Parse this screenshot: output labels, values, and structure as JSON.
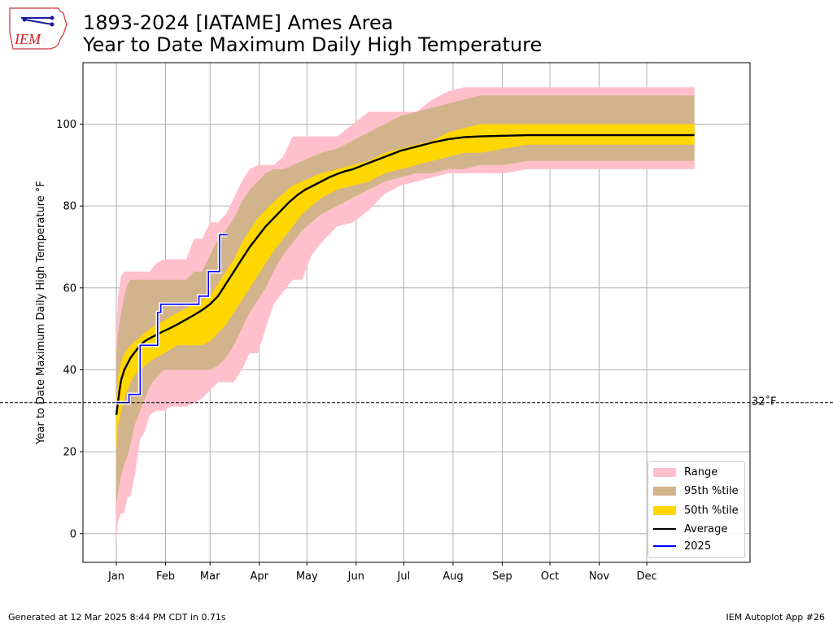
{
  "header": {
    "title_line1": "1893-2024 [IATAME] Ames Area",
    "title_line2": "Year to Date Maximum Daily High Temperature",
    "logo_text": "IEM"
  },
  "footer": {
    "left": "Generated at 12 Mar 2025 8:44 PM CDT in 0.71s",
    "right": "IEM Autoplot App #26"
  },
  "colors": {
    "range": "#ffc0cb",
    "p95": "#d2b48c",
    "p50": "#ffd700",
    "average": "#000000",
    "current": "#0000ff",
    "grid": "#b0b0b0"
  },
  "chart_data": {
    "type": "area",
    "title": "1893-2024 [IATAME] Ames Area Year to Date Maximum Daily High Temperature",
    "xlabel": "",
    "ylabel": "Year to Date Maximum Daily High Temperature °F",
    "ylim": [
      -7,
      115
    ],
    "xlim": [
      -20,
      400
    ],
    "grid": true,
    "legend_position": "bottom-right",
    "x_ticks": [
      {
        "day": 1,
        "label": "Jan"
      },
      {
        "day": 32,
        "label": "Feb"
      },
      {
        "day": 60,
        "label": "Mar"
      },
      {
        "day": 91,
        "label": "Apr"
      },
      {
        "day": 121,
        "label": "May"
      },
      {
        "day": 152,
        "label": "Jun"
      },
      {
        "day": 182,
        "label": "Jul"
      },
      {
        "day": 213,
        "label": "Aug"
      },
      {
        "day": 244,
        "label": "Sep"
      },
      {
        "day": 274,
        "label": "Oct"
      },
      {
        "day": 305,
        "label": "Nov"
      },
      {
        "day": 335,
        "label": "Dec"
      }
    ],
    "y_ticks": [
      0,
      20,
      40,
      60,
      80,
      100
    ],
    "reference_line": {
      "y": 32,
      "label": "32˚F"
    },
    "legend": [
      {
        "label": "Range",
        "kind": "patch",
        "color": "#ffc0cb"
      },
      {
        "label": "95th %tile",
        "kind": "patch",
        "color": "#d2b48c"
      },
      {
        "label": "50th %tile",
        "kind": "patch",
        "color": "#ffd700"
      },
      {
        "label": "Average",
        "kind": "line",
        "color": "#000000"
      },
      {
        "label": "2025",
        "kind": "line",
        "color": "#0000ff"
      }
    ],
    "series": [
      {
        "name": "Range",
        "days": [
          1,
          2,
          4,
          6,
          8,
          10,
          13,
          16,
          19,
          22,
          26,
          31,
          35,
          40,
          45,
          50,
          55,
          60,
          65,
          70,
          75,
          80,
          85,
          90,
          95,
          100,
          106,
          112,
          118,
          124,
          130,
          140,
          150,
          160,
          170,
          180,
          190,
          200,
          210,
          220,
          230,
          245,
          260,
          280,
          300,
          320,
          340,
          365
        ],
        "upper": [
          49,
          58,
          63,
          64,
          64,
          64,
          64,
          64,
          64,
          64,
          66,
          67,
          67,
          67,
          67,
          72,
          72,
          76,
          76,
          78,
          82,
          86,
          89,
          90,
          90,
          90,
          92,
          97,
          97,
          97,
          97,
          97,
          100,
          103,
          103,
          103,
          103,
          106,
          108,
          109,
          109,
          109,
          109,
          109,
          109,
          109,
          109,
          109
        ],
        "lower": [
          -2,
          3,
          5,
          5,
          9,
          9,
          15,
          23,
          25,
          29,
          30,
          30,
          31,
          31,
          31,
          32,
          33,
          35,
          37,
          37,
          37,
          40,
          44,
          44,
          50,
          56,
          59,
          62,
          62,
          68,
          71,
          75,
          76,
          79,
          83,
          85,
          86,
          87,
          88,
          88,
          88,
          88,
          89,
          89,
          89,
          89,
          89,
          89
        ]
      },
      {
        "name": "95th %tile",
        "days": [
          1,
          2,
          4,
          6,
          8,
          10,
          13,
          16,
          19,
          22,
          26,
          31,
          35,
          40,
          45,
          50,
          55,
          60,
          65,
          70,
          75,
          80,
          85,
          90,
          95,
          100,
          106,
          112,
          118,
          124,
          130,
          140,
          150,
          160,
          170,
          180,
          190,
          200,
          210,
          220,
          230,
          245,
          260,
          280,
          300,
          320,
          340,
          365
        ],
        "upper": [
          44,
          49,
          54,
          58,
          61,
          62,
          62,
          62,
          62,
          62,
          62,
          62,
          62,
          62,
          62,
          64,
          64,
          68,
          72,
          74,
          77,
          81,
          84,
          86,
          88,
          89,
          89,
          90,
          91,
          92,
          93,
          94,
          96,
          98,
          100,
          102,
          103,
          104,
          105,
          106,
          107,
          107,
          107,
          107,
          107,
          107,
          107,
          107
        ],
        "lower": [
          7,
          10,
          14,
          17,
          19,
          22,
          27,
          30,
          33,
          36,
          38,
          40,
          40,
          40,
          40,
          40,
          40,
          40,
          41,
          43,
          46,
          50,
          54,
          57,
          60,
          64,
          68,
          71,
          74,
          76,
          78,
          80,
          82,
          84,
          86,
          87,
          88,
          88,
          89,
          89,
          90,
          90,
          91,
          91,
          91,
          91,
          91,
          91
        ]
      },
      {
        "name": "50th %tile",
        "days": [
          1,
          2,
          4,
          6,
          8,
          10,
          13,
          16,
          19,
          22,
          26,
          31,
          35,
          40,
          45,
          50,
          55,
          60,
          65,
          70,
          75,
          80,
          85,
          90,
          95,
          100,
          106,
          112,
          118,
          124,
          130,
          140,
          150,
          160,
          170,
          180,
          190,
          200,
          210,
          220,
          230,
          245,
          260,
          280,
          300,
          320,
          340,
          365
        ],
        "upper": [
          33,
          38,
          42,
          44,
          45,
          46,
          47,
          48,
          49,
          50,
          51,
          52,
          53,
          54,
          55,
          56,
          57,
          58,
          61,
          64,
          67,
          71,
          74,
          77,
          79,
          81,
          83,
          85,
          86,
          87,
          88,
          89,
          90,
          91,
          93,
          94,
          95,
          96,
          98,
          99,
          100,
          100,
          100,
          100,
          100,
          100,
          100,
          100
        ],
        "lower": [
          20,
          26,
          30,
          33,
          35,
          37,
          39,
          40,
          41,
          42,
          43,
          44,
          45,
          46,
          46,
          46,
          46,
          47,
          49,
          51,
          54,
          57,
          60,
          63,
          66,
          69,
          72,
          75,
          78,
          80,
          82,
          84,
          85,
          86,
          88,
          89,
          90,
          91,
          92,
          93,
          93,
          94,
          95,
          95,
          95,
          95,
          95,
          95
        ]
      },
      {
        "name": "Average",
        "days": [
          1,
          2,
          3,
          4,
          6,
          8,
          10,
          13,
          16,
          19,
          22,
          26,
          30,
          35,
          40,
          45,
          50,
          55,
          60,
          65,
          70,
          75,
          80,
          85,
          90,
          95,
          100,
          105,
          110,
          115,
          120,
          125,
          130,
          135,
          140,
          145,
          150,
          160,
          170,
          180,
          190,
          200,
          210,
          220,
          230,
          240,
          250,
          260,
          280,
          300,
          320,
          340,
          365
        ],
        "values": [
          29,
          32,
          35,
          37.5,
          40,
          41.5,
          43,
          44.5,
          46,
          47,
          47.7,
          48.5,
          49.3,
          50.2,
          51.2,
          52.3,
          53.4,
          54.6,
          56,
          58,
          61,
          64,
          67,
          70,
          72.5,
          75,
          77,
          79,
          81,
          82.7,
          84,
          85,
          86,
          87,
          87.8,
          88.5,
          89,
          90.5,
          92,
          93.5,
          94.5,
          95.5,
          96.3,
          96.8,
          97,
          97.1,
          97.2,
          97.3,
          97.3,
          97.3,
          97.3,
          97.3,
          97.3
        ]
      },
      {
        "name": "2025",
        "steps": [
          {
            "day": 1,
            "value": 32
          },
          {
            "day": 9,
            "value": 34
          },
          {
            "day": 16,
            "value": 46
          },
          {
            "day": 27,
            "value": 54
          },
          {
            "day": 29,
            "value": 56
          },
          {
            "day": 53,
            "value": 58
          },
          {
            "day": 59,
            "value": 64
          },
          {
            "day": 66,
            "value": 73
          }
        ],
        "last_day": 71
      }
    ]
  }
}
